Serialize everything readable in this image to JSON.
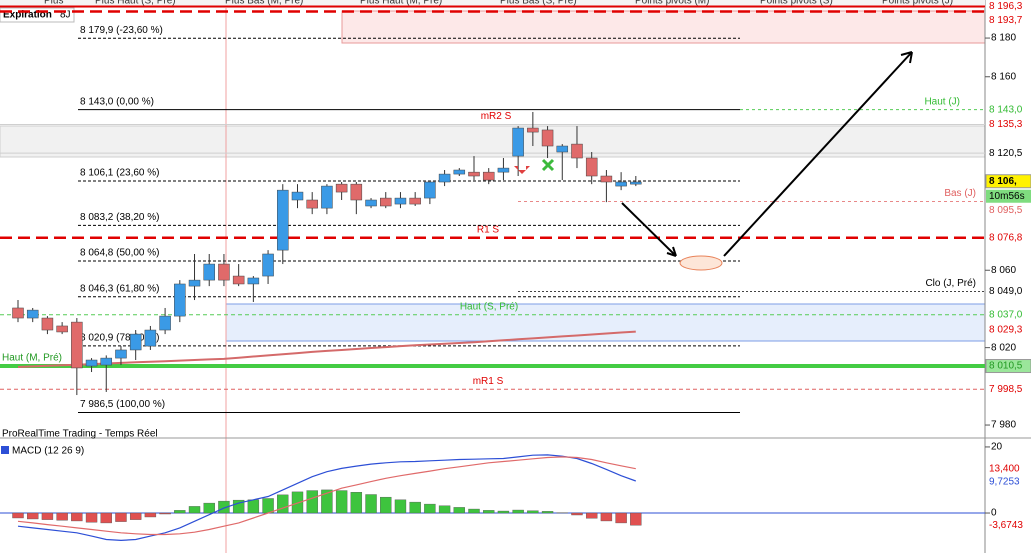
{
  "tabs": [
    "Plus",
    "Plus Haut (S, Pré)",
    "Plus Bas (M, Pré)",
    "Plus Haut (M, Pré)",
    "Plus Bas (S, Pré)",
    "Points pivots (M)",
    "Points pivots (S)",
    "Points pivots (J)"
  ],
  "expiration": {
    "label": "Expiration",
    "value": "8J"
  },
  "chart_data": [
    {
      "type": "candlestick",
      "categories": [
        null,
        null,
        null,
        null,
        null,
        null,
        null,
        null,
        null,
        null,
        null,
        null,
        null,
        null,
        null,
        null,
        null,
        null,
        null,
        null,
        null,
        null,
        null,
        null,
        null,
        null,
        null,
        null,
        null,
        null,
        null,
        null,
        null,
        null,
        null,
        null,
        null,
        null,
        null,
        null,
        null,
        null,
        null
      ],
      "open": [
        8040.5,
        8035.3,
        8035.3,
        8031.2,
        8033.2,
        8010.5,
        8011,
        8014.6,
        8018.8,
        8020.8,
        8029.1,
        8036.3,
        8051.8,
        8054.9,
        8063.2,
        8057,
        8052.9,
        8057,
        8070.4,
        8096.3,
        8096.3,
        8092.1,
        8104.5,
        8104.5,
        8093.2,
        8097.3,
        8094.2,
        8097.3,
        8097.3,
        8105.6,
        8109.7,
        8110.7,
        8110.7,
        8110.7,
        8119,
        8133.5,
        8132.5,
        8121.1,
        8125.2,
        8118,
        8108.7,
        8103.5,
        8104.5
      ],
      "high": [
        8044.6,
        8040.5,
        8036.3,
        8033.2,
        8035.3,
        8014.6,
        8016,
        8020.8,
        8029.1,
        8031.2,
        8040.5,
        8054.9,
        8068.4,
        8068.4,
        8068.4,
        8063.2,
        8057,
        8070.4,
        8104.5,
        8104.5,
        8100.4,
        8104.5,
        8105.6,
        8105.6,
        8097.3,
        8100.4,
        8100.4,
        8100.4,
        8105.6,
        8111.8,
        8112.8,
        8119,
        8112.8,
        8118,
        8134.5,
        8141.8,
        8134.5,
        8125.2,
        8134.5,
        8121.1,
        8111.8,
        8110.7,
        8108.7
      ],
      "low": [
        8033.2,
        8033.2,
        8027,
        8027,
        7995.5,
        8007.4,
        7997.1,
        8011,
        8013.6,
        8018.8,
        8027,
        8033.2,
        8044.6,
        8051.8,
        8051.8,
        8051.8,
        8043.6,
        8052.9,
        8063.2,
        8092.1,
        8089,
        8089,
        8096.3,
        8089,
        8092.1,
        8092.1,
        8092.1,
        8093.2,
        8094.2,
        8103.5,
        8108.7,
        8106.6,
        8104.5,
        8106.6,
        8108.7,
        8124.2,
        8118,
        8106.6,
        8112.8,
        8104.5,
        8095.2,
        8101.4,
        8103.5
      ],
      "close": [
        8035.3,
        8039.4,
        8029.1,
        8028.1,
        8009.5,
        8013.6,
        8014.6,
        8018.8,
        8027,
        8029.1,
        8036.3,
        8052.9,
        8054.9,
        8063.2,
        8054.9,
        8052.9,
        8056,
        8068.4,
        8101.4,
        8100.4,
        8092.1,
        8103.5,
        8100.4,
        8096.3,
        8096.3,
        8093.2,
        8097.3,
        8094.2,
        8105.6,
        8109.7,
        8111.8,
        8108.7,
        8106.6,
        8112.8,
        8133.5,
        8131.4,
        8124.2,
        8124.2,
        8118,
        8108.7,
        8105.6,
        8105.6,
        8105.6
      ],
      "up_color": "#3a9ae6",
      "down_color": "#e06a6a",
      "moving_average": {
        "color": "#d46a6a",
        "values": [
          8010,
          8010.3,
          8010.6,
          8010.9,
          8011.2,
          8011.5,
          8011.8,
          8012.1,
          8012.4,
          8012.7,
          8013,
          8013.3,
          8013.6,
          8013.9,
          8014.2,
          8014.8,
          8015.4,
          8016,
          8016.6,
          8017.2,
          8017.8,
          8018.3,
          8018.8,
          8019.3,
          8019.8,
          8020.3,
          8020.8,
          8021.2,
          8021.6,
          8022,
          8022.4,
          8022.8,
          8023.3,
          8023.8,
          8024.3,
          8024.8,
          8025.3,
          8025.8,
          8026.3,
          8026.8,
          8027.3,
          8027.8,
          8028.3
        ]
      },
      "ylim": [
        7973.3,
        8194.5
      ],
      "yticks": [
        {
          "value": 8180,
          "label": "8 180"
        },
        {
          "value": 8160,
          "label": "8 160"
        },
        {
          "value": 8060,
          "label": "8 060"
        },
        {
          "value": 8020,
          "label": "8 020"
        },
        {
          "value": 7980,
          "label": "7 980"
        }
      ],
      "fib_levels": [
        {
          "value": 8179.9,
          "label": "8 179,9 (-23,60 %)",
          "dashed": true
        },
        {
          "value": 8143.0,
          "label": "8 143,0 (0,00 %)",
          "dashed": false
        },
        {
          "value": 8106.1,
          "label": "8 106,1 (23,60 %)",
          "dashed": true
        },
        {
          "value": 8083.2,
          "label": "8 083,2 (38,20 %)",
          "dashed": true
        },
        {
          "value": 8064.8,
          "label": "8 064,8 (50,00 %)",
          "dashed": true
        },
        {
          "value": 8046.3,
          "label": "8 046,3 (61,80 %)",
          "dashed": true
        },
        {
          "value": 8020.9,
          "label": "8 020,9 (78,00 %)",
          "dashed": true
        },
        {
          "value": 7986.5,
          "label": "7 986,5 (100,00 %)",
          "dashed": false
        }
      ],
      "price_tags": [
        {
          "value": 8196.3,
          "label": "8 196,3",
          "color": "#e00000"
        },
        {
          "value": 8193.7,
          "label": "8 193,7",
          "color": "#e00000"
        },
        {
          "value": 8143.0,
          "label": "8 143,0",
          "color": "#33bb33",
          "name": "Haut (J)"
        },
        {
          "value": 8135.3,
          "label": "8 135,3",
          "color": "#e00000",
          "name": "mR2 S"
        },
        {
          "value": 8120.5,
          "label": "8 120,5",
          "color": "#000000"
        },
        {
          "value": 8106,
          "label": "8 106,",
          "color": "#000000",
          "background": "#fff200"
        },
        {
          "value": 8095.5,
          "label": "8 095,5",
          "color": "#e06060",
          "name": "Bas (J)"
        },
        {
          "value": 8076.8,
          "label": "8 076,8",
          "color": "#e00000",
          "name": "R1 S"
        },
        {
          "value": 8049.0,
          "label": "8 049,0",
          "color": "#000000",
          "name": "Clo (J, Pré)"
        },
        {
          "value": 8037.0,
          "label": "8 037,0",
          "color": "#33bb33",
          "name": "Haut (S, Pré)"
        },
        {
          "value": 8029.3,
          "label": "8 029,3",
          "color": "#e00000"
        },
        {
          "value": 8010.5,
          "label": "8 010,5",
          "color": "#229922",
          "background": "#9be69b",
          "name": "Haut (M, Pré)"
        },
        {
          "value": 7998.5,
          "label": "7 998,5",
          "color": "#e00000",
          "name": "mR1 S"
        }
      ],
      "countdown": "10m56s"
    },
    {
      "type": "macd",
      "header": "ProRealTime Trading - Temps Réel",
      "title": "MACD (12 26 9)",
      "categories": [
        null,
        null,
        null,
        null,
        null,
        null,
        null,
        null,
        null,
        null,
        null,
        null,
        null,
        null,
        null,
        null,
        null,
        null,
        null,
        null,
        null,
        null,
        null,
        null,
        null,
        null,
        null,
        null,
        null,
        null,
        null,
        null,
        null,
        null,
        null,
        null,
        null,
        null,
        null,
        null,
        null,
        null,
        null
      ],
      "histogram": [
        -1.5,
        -1.8,
        -2,
        -2.2,
        -2.4,
        -2.8,
        -3,
        -2.6,
        -2,
        -1.2,
        -0.3,
        0.8,
        2,
        3,
        3.6,
        3.9,
        4,
        4.4,
        5.5,
        6.4,
        6.8,
        7,
        6.8,
        6.3,
        5.6,
        4.8,
        4,
        3.3,
        2.7,
        2.2,
        1.7,
        1.2,
        0.8,
        0.6,
        0.9,
        0.7,
        0.5,
        0.1,
        -0.6,
        -1.6,
        -2.4,
        -3,
        -3.7
      ],
      "positive_color": "#3ec43e",
      "negative_color": "#e05050",
      "lines": [
        {
          "color": "#2d4fd6",
          "values": [
            -4,
            -4.5,
            -5,
            -5.5,
            -6,
            -7,
            -8,
            -8.3,
            -8,
            -7,
            -6,
            -4.5,
            -2.5,
            -0.5,
            1.5,
            3,
            4,
            5,
            7,
            9,
            11,
            12.5,
            13.5,
            14.2,
            14.8,
            15.2,
            15.5,
            15.6,
            15.8,
            16,
            16.2,
            16.3,
            16.4,
            16.5,
            17,
            17.5,
            17.6,
            17.2,
            16.5,
            15,
            13.2,
            11.3,
            9.7
          ]
        },
        {
          "color": "#e06a6a",
          "values": [
            -2.5,
            -3,
            -3.5,
            -4,
            -4.5,
            -5,
            -5.5,
            -6,
            -6.3,
            -6.5,
            -6.5,
            -6.3,
            -5.8,
            -5,
            -4,
            -3,
            -1.5,
            0,
            1.5,
            3,
            4.5,
            6,
            7.5,
            8.5,
            9.5,
            10.5,
            11.3,
            12,
            12.7,
            13.4,
            14,
            14.6,
            15.2,
            15.6,
            16,
            16.4,
            16.8,
            17,
            16.8,
            16.2,
            15.2,
            14.3,
            13.4
          ]
        }
      ],
      "ylim": [
        -12.1,
        22.1
      ],
      "yticks": [
        20,
        0
      ],
      "price_tags": [
        {
          "value": 13.4,
          "label": "13,400",
          "color": "#e00000"
        },
        {
          "value": 9.7253,
          "label": "9,7253",
          "color": "#2d4fd6"
        },
        {
          "value": -3.6743,
          "label": "-3,6743",
          "color": "#e00000"
        }
      ]
    }
  ]
}
